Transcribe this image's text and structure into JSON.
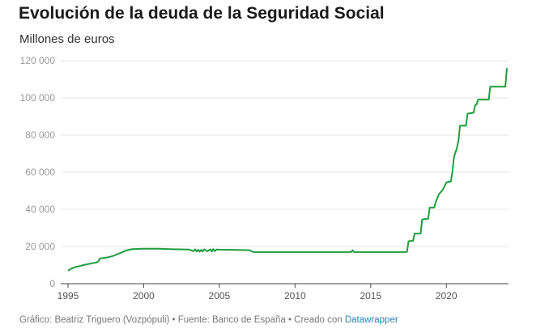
{
  "chart_data": {
    "type": "line",
    "title": "Evolución de la deuda de la Seguridad Social",
    "subtitle": "Millones de euros",
    "xlabel": "",
    "ylabel": "",
    "xlim": [
      1995,
      2024
    ],
    "ylim": [
      0,
      120000
    ],
    "y_ticks": [
      0,
      20000,
      40000,
      60000,
      80000,
      100000,
      120000
    ],
    "y_tick_labels": [
      "0",
      "20 000",
      "40 000",
      "60 000",
      "80 000",
      "100 000",
      "120 000"
    ],
    "x_ticks": [
      1995,
      2000,
      2005,
      2010,
      2015,
      2020
    ],
    "x_tick_labels": [
      "1995",
      "2000",
      "2005",
      "2010",
      "2015",
      "2020"
    ],
    "grid": true,
    "line_color": "#1e9e3e",
    "series": [
      {
        "x": [
          1995.0,
          1995.2,
          1995.5,
          1995.8,
          1996.0,
          1996.3,
          1996.6,
          1996.9,
          1997.0,
          1997.1,
          1997.5,
          1997.8,
          1998.0,
          1998.3,
          1998.6,
          1998.9,
          1999.2,
          1999.5,
          2000.0,
          2001.0,
          2002.0,
          2003.0,
          2003.3,
          2003.4,
          2003.5,
          2003.6,
          2003.7,
          2003.8,
          2003.9,
          2004.0,
          2004.2,
          2004.4,
          2004.5,
          2004.6,
          2004.7,
          2004.8,
          2005.0,
          2006.0,
          2007.0,
          2007.2,
          2007.3,
          2010.0,
          2013.7,
          2013.8,
          2013.9,
          2017.0,
          2017.4,
          2017.5,
          2017.6,
          2017.8,
          2017.9,
          2018.3,
          2018.4,
          2018.8,
          2018.9,
          2019.2,
          2019.3,
          2019.5,
          2019.8,
          2020.0,
          2020.3,
          2020.4,
          2020.5,
          2020.7,
          2020.8,
          2020.9,
          2021.3,
          2021.4,
          2021.8,
          2021.9,
          2022.0,
          2022.1,
          2022.2,
          2022.8,
          2022.9,
          2023.9,
          2024.0
        ],
        "values": [
          7000,
          8000,
          9000,
          9500,
          10000,
          10500,
          11000,
          11500,
          12000,
          13500,
          14000,
          14500,
          15000,
          16000,
          17000,
          18000,
          18500,
          18700,
          18800,
          18800,
          18500,
          18400,
          17500,
          18500,
          17300,
          18300,
          17200,
          18200,
          17300,
          18500,
          17400,
          18500,
          17300,
          18600,
          17500,
          18400,
          18300,
          18200,
          18000,
          17200,
          17000,
          17000,
          17000,
          18000,
          17000,
          17000,
          17100,
          22800,
          23000,
          23000,
          27000,
          27000,
          34500,
          35000,
          41000,
          41000,
          44000,
          48000,
          51000,
          54500,
          55000,
          60000,
          68000,
          73000,
          77000,
          85000,
          85000,
          91500,
          92000,
          96000,
          96500,
          99000,
          99000,
          99000,
          106000,
          106000,
          116000
        ]
      }
    ]
  },
  "footer": {
    "text": "Gráfico: Beatriz Triguero (Vozpópuli) • Fuente: Banco de España • Creado con ",
    "link": "Datawrapper"
  }
}
